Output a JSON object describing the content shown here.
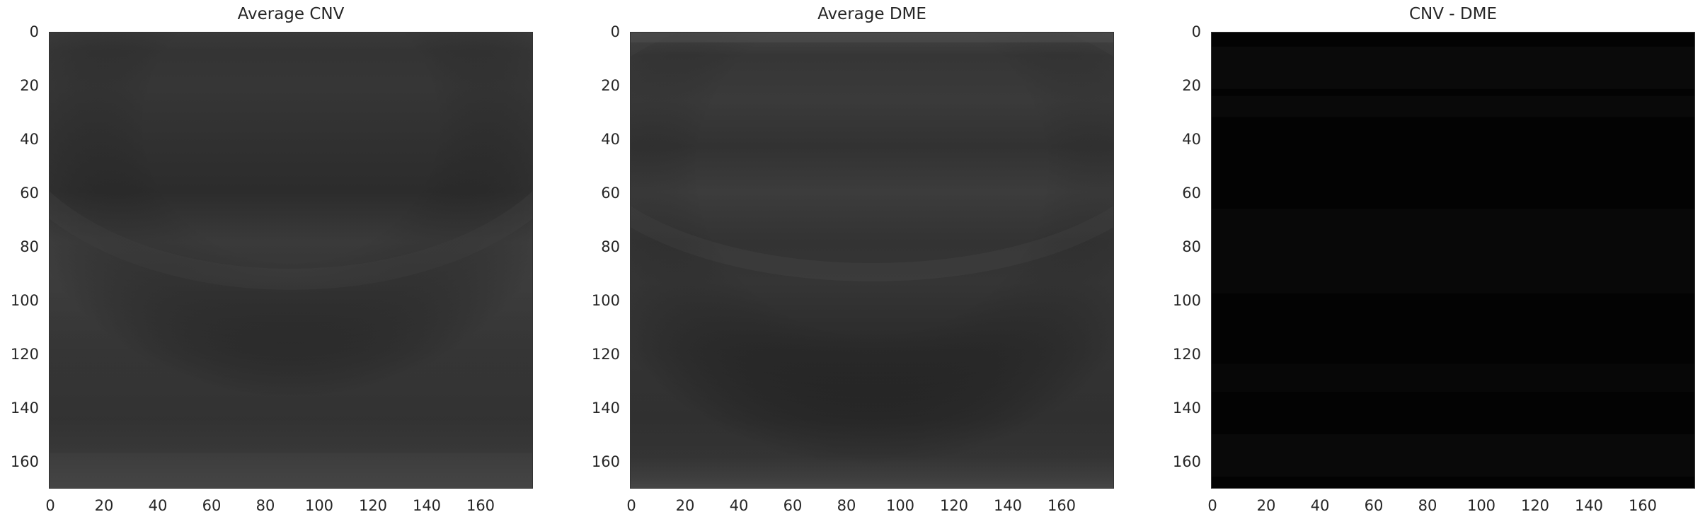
{
  "chart_data": [
    {
      "type": "heatmap",
      "title": "Average CNV",
      "xlim": [
        0,
        179
      ],
      "ylim": [
        169,
        0
      ],
      "xticks": [
        0,
        20,
        40,
        60,
        80,
        100,
        120,
        140,
        160
      ],
      "yticks": [
        0,
        20,
        40,
        60,
        80,
        100,
        120,
        140,
        160
      ],
      "colormap": "gray",
      "grid": false
    },
    {
      "type": "heatmap",
      "title": "Average DME",
      "xlim": [
        0,
        179
      ],
      "ylim": [
        169,
        0
      ],
      "xticks": [
        0,
        20,
        40,
        60,
        80,
        100,
        120,
        140,
        160
      ],
      "yticks": [
        0,
        20,
        40,
        60,
        80,
        100,
        120,
        140,
        160
      ],
      "colormap": "gray",
      "grid": false
    },
    {
      "type": "heatmap",
      "title": "CNV - DME",
      "xlim": [
        0,
        179
      ],
      "ylim": [
        169,
        0
      ],
      "xticks": [
        0,
        20,
        40,
        60,
        80,
        100,
        120,
        140,
        160
      ],
      "yticks": [
        0,
        20,
        40,
        60,
        80,
        100,
        120,
        140,
        160
      ],
      "colormap": "gray",
      "grid": false
    }
  ]
}
